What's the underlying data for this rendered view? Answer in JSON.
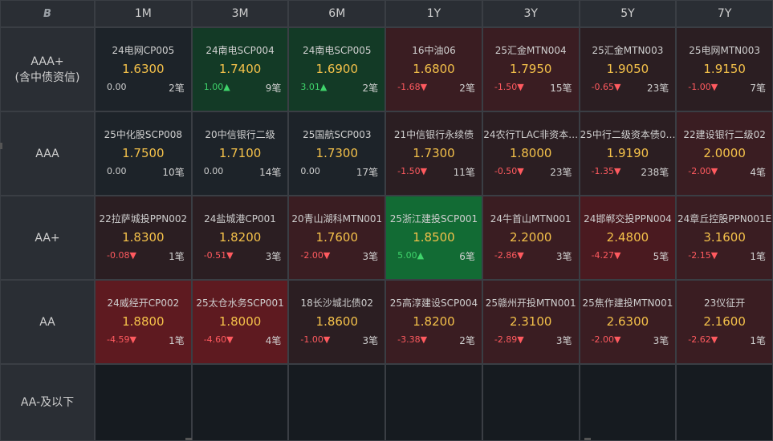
{
  "logo": "B",
  "columns": [
    "1M",
    "3M",
    "6M",
    "1Y",
    "3Y",
    "5Y",
    "7Y"
  ],
  "rows": [
    {
      "label_lines": [
        "AAA+",
        "(含中债资信)"
      ],
      "cells": [
        {
          "name": "24电网CP005",
          "yield": "1.6300",
          "change": "0.00",
          "dir": "flat",
          "count": "2笔",
          "tone": "neutral"
        },
        {
          "name": "24南电SCP004",
          "yield": "1.7400",
          "change": "1.00▲",
          "dir": "up",
          "count": "9笔",
          "tone": "green1"
        },
        {
          "name": "24南电SCP005",
          "yield": "1.6900",
          "change": "3.01▲",
          "dir": "up",
          "count": "2笔",
          "tone": "green1"
        },
        {
          "name": "16中油06",
          "yield": "1.6800",
          "change": "-1.68▼",
          "dir": "down",
          "count": "2笔",
          "tone": "red2"
        },
        {
          "name": "25汇金MTN004",
          "yield": "1.7950",
          "change": "-1.50▼",
          "dir": "down",
          "count": "15笔",
          "tone": "red2"
        },
        {
          "name": "25汇金MTN003",
          "yield": "1.9050",
          "change": "-0.65▼",
          "dir": "down",
          "count": "23笔",
          "tone": "red1"
        },
        {
          "name": "25电网MTN003",
          "yield": "1.9150",
          "change": "-1.00▼",
          "dir": "down",
          "count": "7笔",
          "tone": "red1"
        }
      ]
    },
    {
      "label_lines": [
        "AAA"
      ],
      "cells": [
        {
          "name": "25中化股SCP008",
          "yield": "1.7500",
          "change": "0.00",
          "dir": "flat",
          "count": "10笔",
          "tone": "neutral"
        },
        {
          "name": "20中信银行二级",
          "yield": "1.7100",
          "change": "0.00",
          "dir": "flat",
          "count": "14笔",
          "tone": "neutral"
        },
        {
          "name": "25国航SCP003",
          "yield": "1.7300",
          "change": "0.00",
          "dir": "flat",
          "count": "17笔",
          "tone": "neutral"
        },
        {
          "name": "21中信银行永续债",
          "yield": "1.7300",
          "change": "-1.50▼",
          "dir": "down",
          "count": "11笔",
          "tone": "red1"
        },
        {
          "name": "24农行TLAC非资本…",
          "yield": "1.8000",
          "change": "-0.50▼",
          "dir": "down",
          "count": "23笔",
          "tone": "red1"
        },
        {
          "name": "25中行二级资本债0…",
          "yield": "1.9190",
          "change": "-1.35▼",
          "dir": "down",
          "count": "238笔",
          "tone": "red1"
        },
        {
          "name": "22建设银行二级02",
          "yield": "2.0000",
          "change": "-2.00▼",
          "dir": "down",
          "count": "4笔",
          "tone": "red2"
        }
      ]
    },
    {
      "label_lines": [
        "AA+"
      ],
      "cells": [
        {
          "name": "22拉萨城投PPN002",
          "yield": "1.8300",
          "change": "-0.08▼",
          "dir": "down",
          "count": "1笔",
          "tone": "red1"
        },
        {
          "name": "24盐城港CP001",
          "yield": "1.8200",
          "change": "-0.51▼",
          "dir": "down",
          "count": "3笔",
          "tone": "red1"
        },
        {
          "name": "20青山湖科MTN001",
          "yield": "1.7600",
          "change": "-2.00▼",
          "dir": "down",
          "count": "3笔",
          "tone": "red2"
        },
        {
          "name": "25浙江建投SCP001",
          "yield": "1.8500",
          "change": "5.00▲",
          "dir": "up",
          "count": "6笔",
          "tone": "green2"
        },
        {
          "name": "24牛首山MTN001",
          "yield": "2.2000",
          "change": "-2.86▼",
          "dir": "down",
          "count": "3笔",
          "tone": "red2"
        },
        {
          "name": "24邯郸交投PPN004",
          "yield": "2.4800",
          "change": "-4.27▼",
          "dir": "down",
          "count": "5笔",
          "tone": "red3"
        },
        {
          "name": "24章丘控股PPN001E",
          "yield": "3.1600",
          "change": "-2.15▼",
          "dir": "down",
          "count": "1笔",
          "tone": "red2"
        }
      ]
    },
    {
      "label_lines": [
        "AA"
      ],
      "cells": [
        {
          "name": "24威经开CP002",
          "yield": "1.8800",
          "change": "-4.59▼",
          "dir": "down",
          "count": "1笔",
          "tone": "red4"
        },
        {
          "name": "25太仓水务SCP001",
          "yield": "1.8000",
          "change": "-4.60▼",
          "dir": "down",
          "count": "4笔",
          "tone": "red4"
        },
        {
          "name": "18长沙城北债02",
          "yield": "1.8600",
          "change": "-1.00▼",
          "dir": "down",
          "count": "3笔",
          "tone": "red1"
        },
        {
          "name": "25高淳建设SCP004",
          "yield": "1.8200",
          "change": "-3.38▼",
          "dir": "down",
          "count": "2笔",
          "tone": "red2"
        },
        {
          "name": "25赣州开投MTN001",
          "yield": "2.3100",
          "change": "-2.89▼",
          "dir": "down",
          "count": "3笔",
          "tone": "red2"
        },
        {
          "name": "25焦作建投MTN001",
          "yield": "2.6300",
          "change": "-2.00▼",
          "dir": "down",
          "count": "3笔",
          "tone": "red2"
        },
        {
          "name": "23仪征开",
          "yield": "2.1600",
          "change": "-2.62▼",
          "dir": "down",
          "count": "1笔",
          "tone": "red2"
        }
      ]
    },
    {
      "label_lines": [
        "AA-及以下"
      ],
      "cells": []
    }
  ]
}
